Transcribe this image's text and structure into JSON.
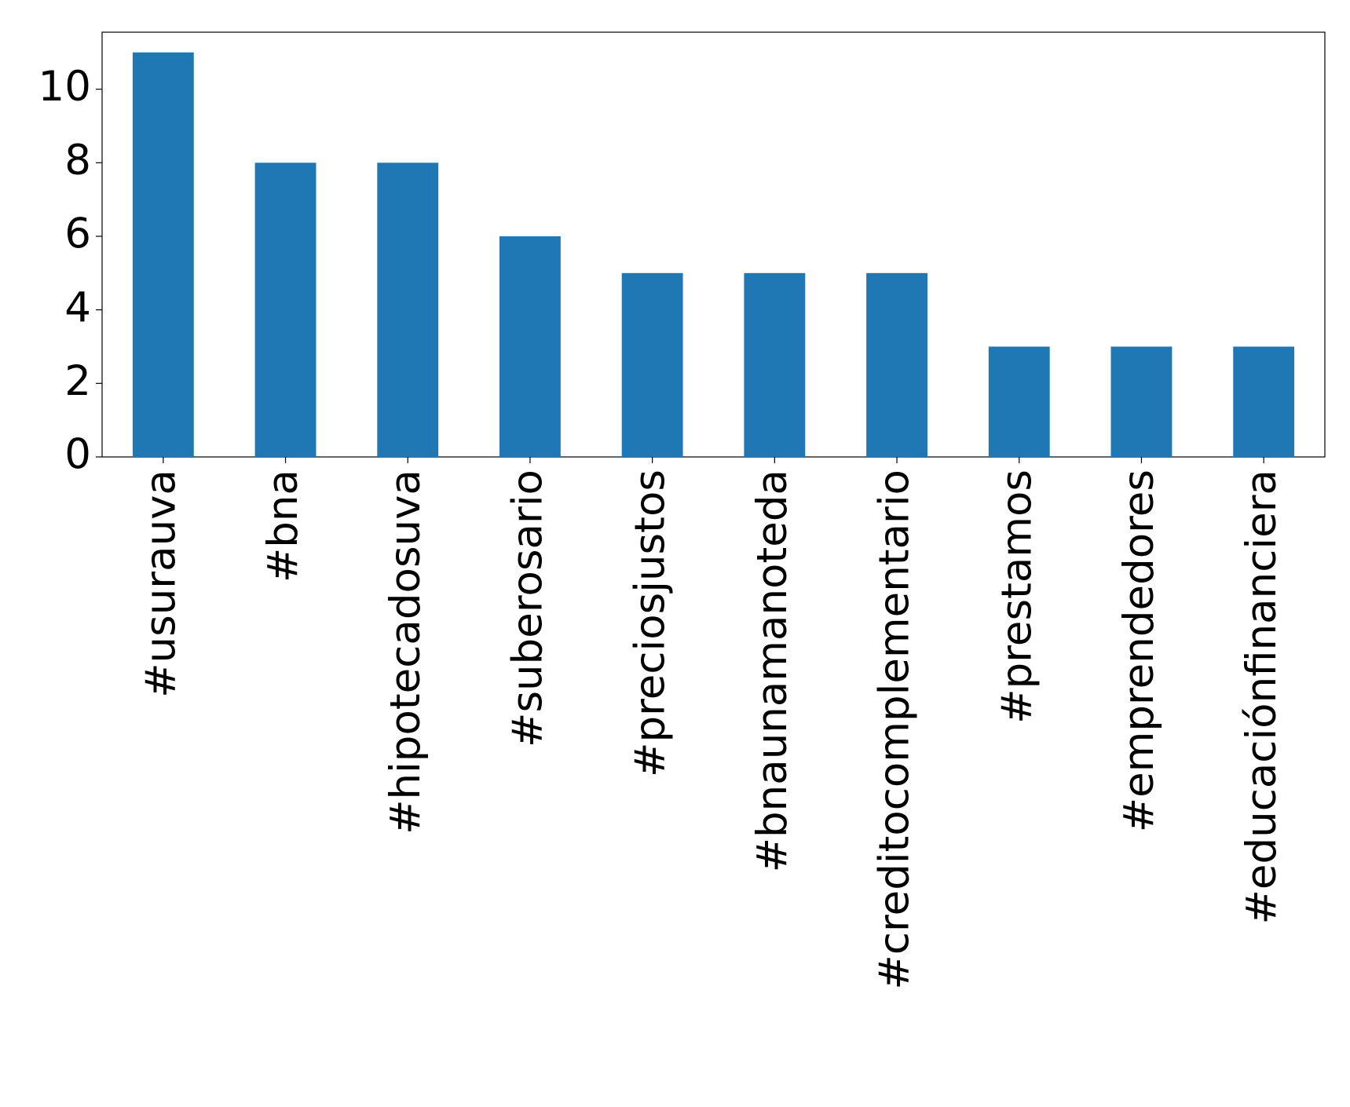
{
  "chart_data": {
    "type": "bar",
    "categories": [
      "#usurauva",
      "#bna",
      "#hipotecadosuva",
      "#suberosario",
      "#preciosjustos",
      "#bnaunamanoteda",
      "#creditocomplementario",
      "#prestamos",
      "#emprendedores",
      "#educaciónfinanciera"
    ],
    "values": [
      11,
      8,
      8,
      6,
      5,
      5,
      5,
      3,
      3,
      3
    ],
    "color": "#1f77b4",
    "ylim": [
      0,
      11.55
    ],
    "yticks": [
      0,
      2,
      4,
      6,
      8,
      10
    ],
    "grid": false
  }
}
